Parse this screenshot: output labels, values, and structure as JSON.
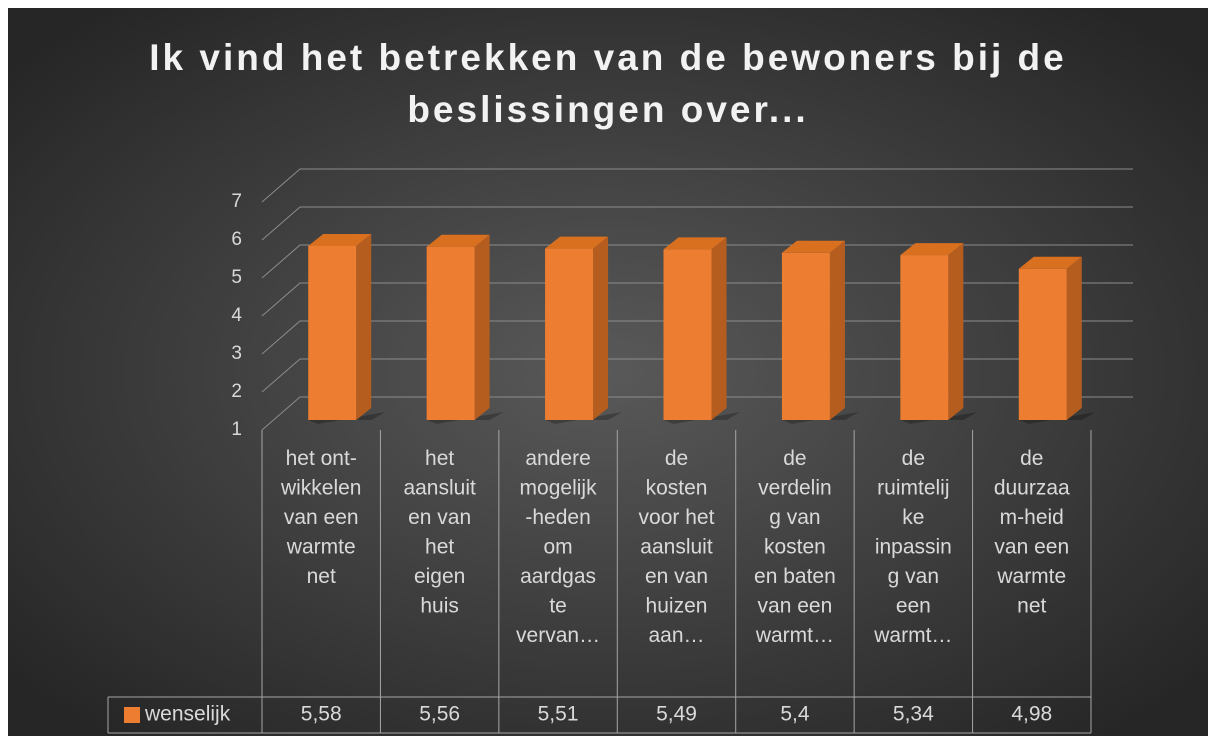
{
  "chart_data": {
    "type": "bar3d",
    "title": "Ik vind het betrekken van de bewoners bij de\nbeslissingen over...",
    "categories": [
      "het ont-\nwikkelen\nvan een\nwarmte\nnet",
      "het\naansluit\nen van\nhet\neigen\nhuis",
      "andere\nmogelijk\n-heden\nom\naardgas\nte\nvervan…",
      "de\nkosten\nvoor het\naansluit\nen van\nhuizen\naan…",
      "de\nverdelin\ng van\nkosten\nen baten\nvan een\nwarmt…",
      "de\nruimtelij\nke\ninpassin\ng van\neen\nwarmt…",
      "de\nduurzaa\nm-heid\nvan een\nwarmte\nnet"
    ],
    "series": [
      {
        "name": "wenselijk",
        "color": "#ed7d31",
        "values": [
          5.58,
          5.56,
          5.51,
          5.49,
          5.4,
          5.34,
          4.98
        ],
        "value_labels": [
          "5,58",
          "5,56",
          "5,51",
          "5,49",
          "5,4",
          "5,34",
          "4,98"
        ]
      }
    ],
    "ylim": [
      1,
      7
    ],
    "yticks": [
      1,
      2,
      3,
      4,
      5,
      6,
      7
    ],
    "grid": true,
    "data_table": true
  }
}
